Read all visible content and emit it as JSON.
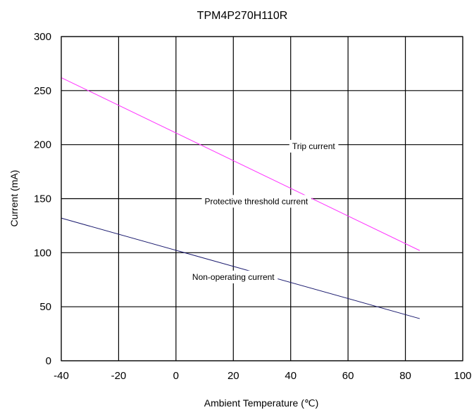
{
  "chart_data": {
    "type": "line",
    "title": "TPM4P270H110R",
    "xlabel": "Ambient Temperature (℃)",
    "ylabel": "Current (mA)",
    "xlim": [
      -40,
      100
    ],
    "ylim": [
      0,
      300
    ],
    "x_ticks": [
      "-40",
      "-20",
      "0",
      "20",
      "40",
      "60",
      "80",
      "100"
    ],
    "y_ticks": [
      "0",
      "50",
      "100",
      "150",
      "200",
      "250",
      "300"
    ],
    "grid": true,
    "legend": "none",
    "series": [
      {
        "name": "Trip current",
        "color": "#ff33ff",
        "x": [
          -40,
          85
        ],
        "y": [
          262,
          102
        ]
      },
      {
        "name": "Non-operating current",
        "color": "#1a1a6e",
        "x": [
          -40,
          85
        ],
        "y": [
          132,
          39
        ]
      }
    ],
    "annotations": [
      {
        "text": "Trip current",
        "x": 48,
        "y": 198
      },
      {
        "text": "Protective threshold current",
        "x": 28,
        "y": 147
      },
      {
        "text": "Non-operating current",
        "x": 20,
        "y": 77
      }
    ]
  }
}
